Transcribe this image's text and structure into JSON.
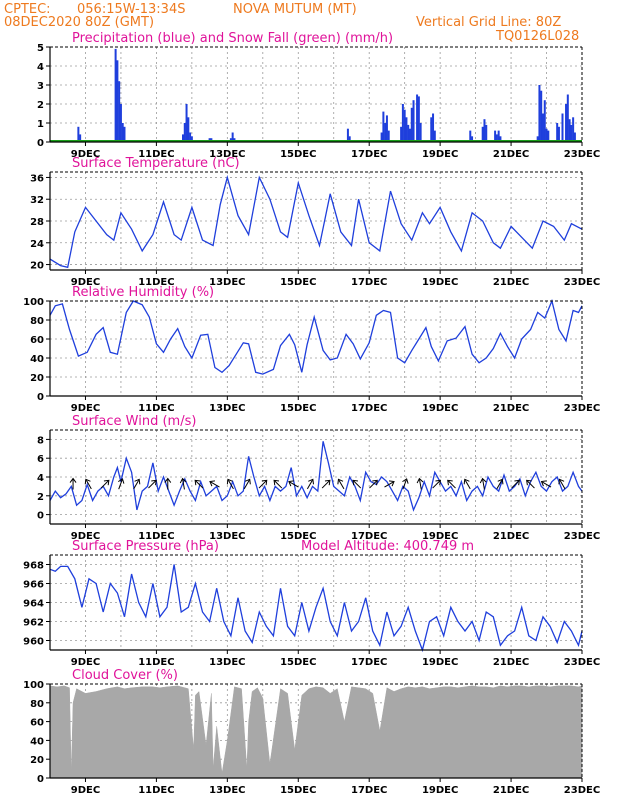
{
  "header": {
    "source": "CPTEC:",
    "coords": "056:15W-13:34S",
    "location": "NOVA MUTUM (MT)",
    "run": "08DEC2020 80Z (GMT)",
    "grid_note": "Vertical Grid Line: 80Z",
    "model": "TQ0126L028"
  },
  "colors": {
    "header": "#ee7a1f",
    "panel_title": "#e0139a",
    "series": "#1f3fdc",
    "snow": "#1aa01a",
    "cloud": "#a8a8a8",
    "grid": "#9a9a9a"
  },
  "x_axis": {
    "type": "time",
    "range": [
      "2020-12-08 08Z",
      "2020-12-23 08Z"
    ],
    "tick_labels": [
      "9DEC",
      "11DEC",
      "13DEC",
      "15DEC",
      "17DEC",
      "19DEC",
      "21DEC",
      "23DEC"
    ],
    "vertical_gridlines": "daily at 08Z"
  },
  "chart_data": [
    {
      "type": "bar",
      "title": "Precipitation (blue) and Snow Fall (green) (mm/h)",
      "ylim": [
        0,
        5
      ],
      "yticks": [
        "0",
        "1",
        "2",
        "3",
        "4",
        "5"
      ],
      "series": [
        {
          "name": "Precipitation",
          "color": "#1f3fdc",
          "points": [
            [
              0.8,
              0.8
            ],
            [
              0.85,
              0.4
            ],
            [
              1.85,
              4.9
            ],
            [
              1.9,
              4.3
            ],
            [
              1.95,
              3.2
            ],
            [
              2.0,
              2.0
            ],
            [
              2.05,
              1.0
            ],
            [
              2.1,
              0.8
            ],
            [
              3.75,
              0.4
            ],
            [
              3.8,
              1.0
            ],
            [
              3.85,
              2.0
            ],
            [
              3.9,
              1.3
            ],
            [
              3.95,
              0.5
            ],
            [
              4.0,
              0.3
            ],
            [
              4.5,
              0.2
            ],
            [
              4.55,
              0.2
            ],
            [
              5.1,
              0.2
            ],
            [
              5.15,
              0.5
            ],
            [
              5.2,
              0.2
            ],
            [
              8.4,
              0.7
            ],
            [
              8.45,
              0.3
            ],
            [
              9.35,
              0.5
            ],
            [
              9.4,
              1.6
            ],
            [
              9.45,
              1.0
            ],
            [
              9.5,
              1.4
            ],
            [
              9.55,
              0.6
            ],
            [
              9.9,
              0.8
            ],
            [
              9.95,
              2.0
            ],
            [
              10.0,
              1.7
            ],
            [
              10.05,
              1.3
            ],
            [
              10.1,
              0.9
            ],
            [
              10.15,
              0.7
            ],
            [
              10.2,
              1.8
            ],
            [
              10.25,
              2.2
            ],
            [
              10.35,
              2.5
            ],
            [
              10.4,
              2.4
            ],
            [
              10.45,
              1.0
            ],
            [
              10.75,
              1.3
            ],
            [
              10.8,
              1.5
            ],
            [
              10.85,
              0.6
            ],
            [
              11.85,
              0.6
            ],
            [
              11.9,
              0.3
            ],
            [
              12.2,
              0.8
            ],
            [
              12.25,
              1.2
            ],
            [
              12.3,
              0.9
            ],
            [
              12.55,
              0.6
            ],
            [
              12.6,
              0.4
            ],
            [
              12.65,
              0.6
            ],
            [
              12.7,
              0.3
            ],
            [
              13.75,
              0.3
            ],
            [
              13.8,
              3.0
            ],
            [
              13.85,
              2.7
            ],
            [
              13.9,
              1.5
            ],
            [
              13.95,
              2.2
            ],
            [
              14.0,
              0.7
            ],
            [
              14.05,
              0.6
            ],
            [
              14.3,
              1.0
            ],
            [
              14.35,
              0.8
            ],
            [
              14.45,
              1.5
            ],
            [
              14.55,
              2.0
            ],
            [
              14.6,
              2.5
            ],
            [
              14.65,
              1.2
            ],
            [
              14.7,
              0.9
            ],
            [
              14.75,
              1.3
            ],
            [
              14.8,
              0.5
            ]
          ]
        },
        {
          "name": "Snow Fall",
          "color": "#1aa01a",
          "points": [
            [
              0.0,
              0.05
            ],
            [
              15.0,
              0.05
            ]
          ]
        }
      ]
    },
    {
      "type": "line",
      "title": "Surface Temperature (nC)",
      "ylim": [
        19,
        37
      ],
      "yticks": [
        "20",
        "24",
        "28",
        "32",
        "36"
      ],
      "x": [
        0,
        0.3,
        0.5,
        0.7,
        1.0,
        1.3,
        1.6,
        1.8,
        2.0,
        2.3,
        2.6,
        2.9,
        3.2,
        3.5,
        3.7,
        4.0,
        4.3,
        4.6,
        4.8,
        5.0,
        5.3,
        5.6,
        5.9,
        6.2,
        6.5,
        6.7,
        7.0,
        7.3,
        7.6,
        7.9,
        8.2,
        8.5,
        8.7,
        9.0,
        9.3,
        9.6,
        9.9,
        10.2,
        10.5,
        10.7,
        11.0,
        11.3,
        11.6,
        11.9,
        12.2,
        12.5,
        12.7,
        13.0,
        13.3,
        13.6,
        13.9,
        14.2,
        14.5,
        14.7,
        15.0
      ],
      "y": [
        21,
        19.8,
        19.5,
        26,
        30.5,
        28,
        25.5,
        24.5,
        29.5,
        26.5,
        22.5,
        25.5,
        31.5,
        25.5,
        24.5,
        30.5,
        24.5,
        23.5,
        31,
        36,
        29,
        25.5,
        36,
        32,
        26,
        25,
        35,
        29,
        23.5,
        33,
        26,
        23.5,
        32,
        24,
        22.5,
        33.5,
        27.5,
        24.5,
        29.5,
        27.5,
        30.5,
        26,
        22.5,
        29.5,
        28,
        24,
        23,
        27,
        25,
        23,
        28,
        27,
        24.5,
        27.5,
        26.5
      ]
    },
    {
      "type": "line",
      "title": "Relative Humidity (%)",
      "ylim": [
        0,
        100
      ],
      "yticks": [
        "0",
        "20",
        "40",
        "60",
        "80",
        "100"
      ],
      "x": [
        0,
        0.15,
        0.35,
        0.55,
        0.8,
        1.05,
        1.3,
        1.5,
        1.7,
        1.9,
        2.15,
        2.35,
        2.6,
        2.8,
        3.0,
        3.2,
        3.4,
        3.6,
        3.8,
        4.0,
        4.25,
        4.45,
        4.65,
        4.85,
        5.05,
        5.25,
        5.45,
        5.6,
        5.8,
        6.0,
        6.3,
        6.5,
        6.75,
        6.9,
        7.1,
        7.25,
        7.45,
        7.7,
        7.9,
        8.1,
        8.35,
        8.55,
        8.75,
        9.0,
        9.2,
        9.4,
        9.6,
        9.8,
        10.0,
        10.2,
        10.4,
        10.6,
        10.75,
        10.95,
        11.2,
        11.45,
        11.7,
        11.9,
        12.1,
        12.3,
        12.5,
        12.7,
        12.9,
        13.1,
        13.3,
        13.55,
        13.75,
        13.95,
        14.15,
        14.35,
        14.55,
        14.75,
        14.9,
        15.0
      ],
      "y": [
        85,
        95,
        97,
        70,
        42,
        46,
        65,
        72,
        46,
        44,
        88,
        100,
        96,
        83,
        55,
        46,
        60,
        71,
        52,
        40,
        64,
        65,
        30,
        25,
        32,
        44,
        56,
        55,
        25,
        23,
        28,
        53,
        65,
        54,
        25,
        54,
        83,
        48,
        38,
        40,
        65,
        55,
        39,
        56,
        85,
        90,
        88,
        40,
        35,
        48,
        60,
        72,
        52,
        37,
        58,
        61,
        73,
        44,
        35,
        40,
        50,
        66,
        52,
        40,
        60,
        70,
        88,
        82,
        100,
        70,
        58,
        90,
        88,
        95
      ]
    },
    {
      "type": "line",
      "title": "Surface Wind (m/s)",
      "ylim": [
        -1,
        9
      ],
      "yticks": [
        "0",
        "2",
        "4",
        "6",
        "8"
      ],
      "x": [
        0,
        0.15,
        0.3,
        0.45,
        0.6,
        0.75,
        0.9,
        1.05,
        1.2,
        1.35,
        1.5,
        1.65,
        1.8,
        1.9,
        2.0,
        2.15,
        2.3,
        2.45,
        2.6,
        2.75,
        2.9,
        3.05,
        3.2,
        3.35,
        3.5,
        3.65,
        3.8,
        3.95,
        4.1,
        4.25,
        4.4,
        4.55,
        4.7,
        4.85,
        5.0,
        5.15,
        5.3,
        5.45,
        5.6,
        5.75,
        5.9,
        6.05,
        6.2,
        6.35,
        6.5,
        6.65,
        6.8,
        6.95,
        7.1,
        7.25,
        7.4,
        7.55,
        7.7,
        7.85,
        8.0,
        8.15,
        8.3,
        8.45,
        8.6,
        8.75,
        8.9,
        9.05,
        9.2,
        9.35,
        9.5,
        9.65,
        9.8,
        9.95,
        10.1,
        10.25,
        10.4,
        10.55,
        10.7,
        10.85,
        11.0,
        11.15,
        11.3,
        11.45,
        11.6,
        11.75,
        11.9,
        12.05,
        12.2,
        12.35,
        12.5,
        12.65,
        12.8,
        12.95,
        13.1,
        13.25,
        13.4,
        13.55,
        13.7,
        13.85,
        14.0,
        14.15,
        14.3,
        14.45,
        14.6,
        14.75,
        14.9,
        15.0
      ],
      "y": [
        1.5,
        2.5,
        1.8,
        2.2,
        3.0,
        1.0,
        1.5,
        3.2,
        1.5,
        2.5,
        3.0,
        2.0,
        4.0,
        5.0,
        3.5,
        6.0,
        4.5,
        0.5,
        2.5,
        3.0,
        5.5,
        2.5,
        4.0,
        2.5,
        1.0,
        2.5,
        3.8,
        2.5,
        1.5,
        3.5,
        2.0,
        2.5,
        3.0,
        1.5,
        2.0,
        3.5,
        2.0,
        2.5,
        6.2,
        4.0,
        2.0,
        3.0,
        1.5,
        3.0,
        2.5,
        3.0,
        5.0,
        2.0,
        3.0,
        1.8,
        3.0,
        2.5,
        7.8,
        5.5,
        3.0,
        2.5,
        2.0,
        4.0,
        3.0,
        1.5,
        4.5,
        3.5,
        3.2,
        4.0,
        3.5,
        2.5,
        1.5,
        3.0,
        2.5,
        0.5,
        1.8,
        3.5,
        2.0,
        4.5,
        3.5,
        2.5,
        3.0,
        2.0,
        3.5,
        1.5,
        2.5,
        3.0,
        2.0,
        4.0,
        3.0,
        2.5,
        4.2,
        2.5,
        3.0,
        3.8,
        2.0,
        3.5,
        4.5,
        3.0,
        2.5,
        3.5,
        4.0,
        2.5,
        3.0,
        4.5,
        3.0,
        2.5
      ],
      "wind_arrows_deg": [
        0,
        330,
        45,
        20,
        30,
        45,
        0,
        350,
        315,
        300,
        330,
        30,
        45,
        315,
        300,
        30,
        45,
        330,
        315,
        45,
        60,
        20,
        350,
        45,
        315,
        330,
        350,
        30,
        45,
        315,
        300,
        330
      ]
    },
    {
      "type": "line",
      "title": "Surface Pressure (hPa)",
      "annotation": "Model Altitude: 400.749 m",
      "ylim": [
        959,
        969
      ],
      "yticks": [
        "960",
        "962",
        "964",
        "966",
        "968"
      ],
      "x": [
        0,
        0.15,
        0.3,
        0.5,
        0.7,
        0.9,
        1.1,
        1.3,
        1.5,
        1.7,
        1.9,
        2.1,
        2.3,
        2.5,
        2.7,
        2.9,
        3.1,
        3.3,
        3.5,
        3.7,
        3.9,
        4.1,
        4.3,
        4.5,
        4.7,
        4.9,
        5.1,
        5.3,
        5.5,
        5.7,
        5.9,
        6.1,
        6.3,
        6.5,
        6.7,
        6.9,
        7.1,
        7.3,
        7.5,
        7.7,
        7.9,
        8.1,
        8.3,
        8.5,
        8.7,
        8.9,
        9.1,
        9.3,
        9.5,
        9.7,
        9.9,
        10.1,
        10.3,
        10.5,
        10.7,
        10.9,
        11.1,
        11.3,
        11.5,
        11.7,
        11.9,
        12.1,
        12.3,
        12.5,
        12.7,
        12.9,
        13.1,
        13.3,
        13.5,
        13.7,
        13.9,
        14.1,
        14.3,
        14.5,
        14.7,
        14.9,
        15.0
      ],
      "y": [
        967.5,
        967.3,
        967.8,
        967.8,
        966.5,
        963.5,
        966.5,
        966.0,
        963.0,
        966.0,
        965.0,
        962.5,
        967.0,
        964.0,
        962.5,
        966.0,
        962.5,
        963.5,
        968.0,
        963.0,
        963.5,
        966.0,
        963.0,
        962.0,
        965.5,
        962.0,
        960.5,
        964.5,
        961.0,
        959.8,
        963.0,
        961.5,
        960.5,
        965.5,
        961.5,
        960.5,
        964.0,
        961.0,
        963.5,
        965.5,
        962.0,
        960.5,
        964.0,
        961.0,
        962.0,
        964.5,
        961.0,
        959.5,
        963.0,
        960.5,
        961.5,
        963.5,
        961.0,
        959.0,
        962.0,
        962.5,
        960.5,
        963.5,
        962.0,
        961.0,
        962.0,
        960.0,
        963.0,
        962.5,
        959.5,
        960.5,
        961.0,
        963.5,
        960.5,
        960.0,
        962.5,
        961.5,
        959.8,
        962.0,
        961.0,
        959.5,
        961.0
      ]
    },
    {
      "type": "area",
      "title": "Cloud Cover (%)",
      "ylim": [
        0,
        100
      ],
      "yticks": [
        "0",
        "20",
        "40",
        "60",
        "80",
        "100"
      ],
      "x": [
        0,
        0.2,
        0.4,
        0.55,
        0.6,
        0.65,
        0.75,
        1.0,
        1.3,
        1.6,
        1.9,
        2.1,
        2.3,
        2.6,
        2.9,
        3.1,
        3.3,
        3.6,
        3.9,
        4.05,
        4.1,
        4.2,
        4.4,
        4.55,
        4.6,
        4.7,
        4.85,
        5.0,
        5.2,
        5.4,
        5.55,
        5.6,
        5.7,
        5.85,
        6.0,
        6.2,
        6.5,
        6.7,
        6.9,
        7.1,
        7.3,
        7.5,
        7.7,
        7.9,
        8.1,
        8.3,
        8.5,
        8.7,
        8.9,
        9.1,
        9.3,
        9.5,
        9.7,
        9.9,
        10.1,
        10.3,
        10.5,
        10.7,
        10.9,
        11.1,
        11.3,
        11.5,
        11.7,
        11.9,
        12.1,
        12.3,
        12.5,
        12.7,
        12.9,
        13.1,
        13.3,
        13.5,
        13.7,
        13.9,
        14.1,
        14.3,
        14.5,
        14.7,
        14.9,
        15.0
      ],
      "y": [
        98,
        97,
        98,
        96,
        5,
        80,
        95,
        90,
        92,
        95,
        97,
        95,
        96,
        97,
        97,
        96,
        97,
        98,
        95,
        30,
        88,
        92,
        35,
        90,
        10,
        55,
        5,
        40,
        97,
        95,
        10,
        60,
        92,
        96,
        85,
        15,
        95,
        90,
        30,
        88,
        95,
        97,
        96,
        90,
        95,
        60,
        97,
        96,
        95,
        90,
        50,
        96,
        92,
        95,
        97,
        96,
        97,
        95,
        96,
        97,
        97,
        96,
        97,
        98,
        97,
        97,
        96,
        98,
        97,
        98,
        98,
        97,
        98,
        98,
        97,
        98,
        98,
        98,
        97,
        98
      ]
    }
  ]
}
